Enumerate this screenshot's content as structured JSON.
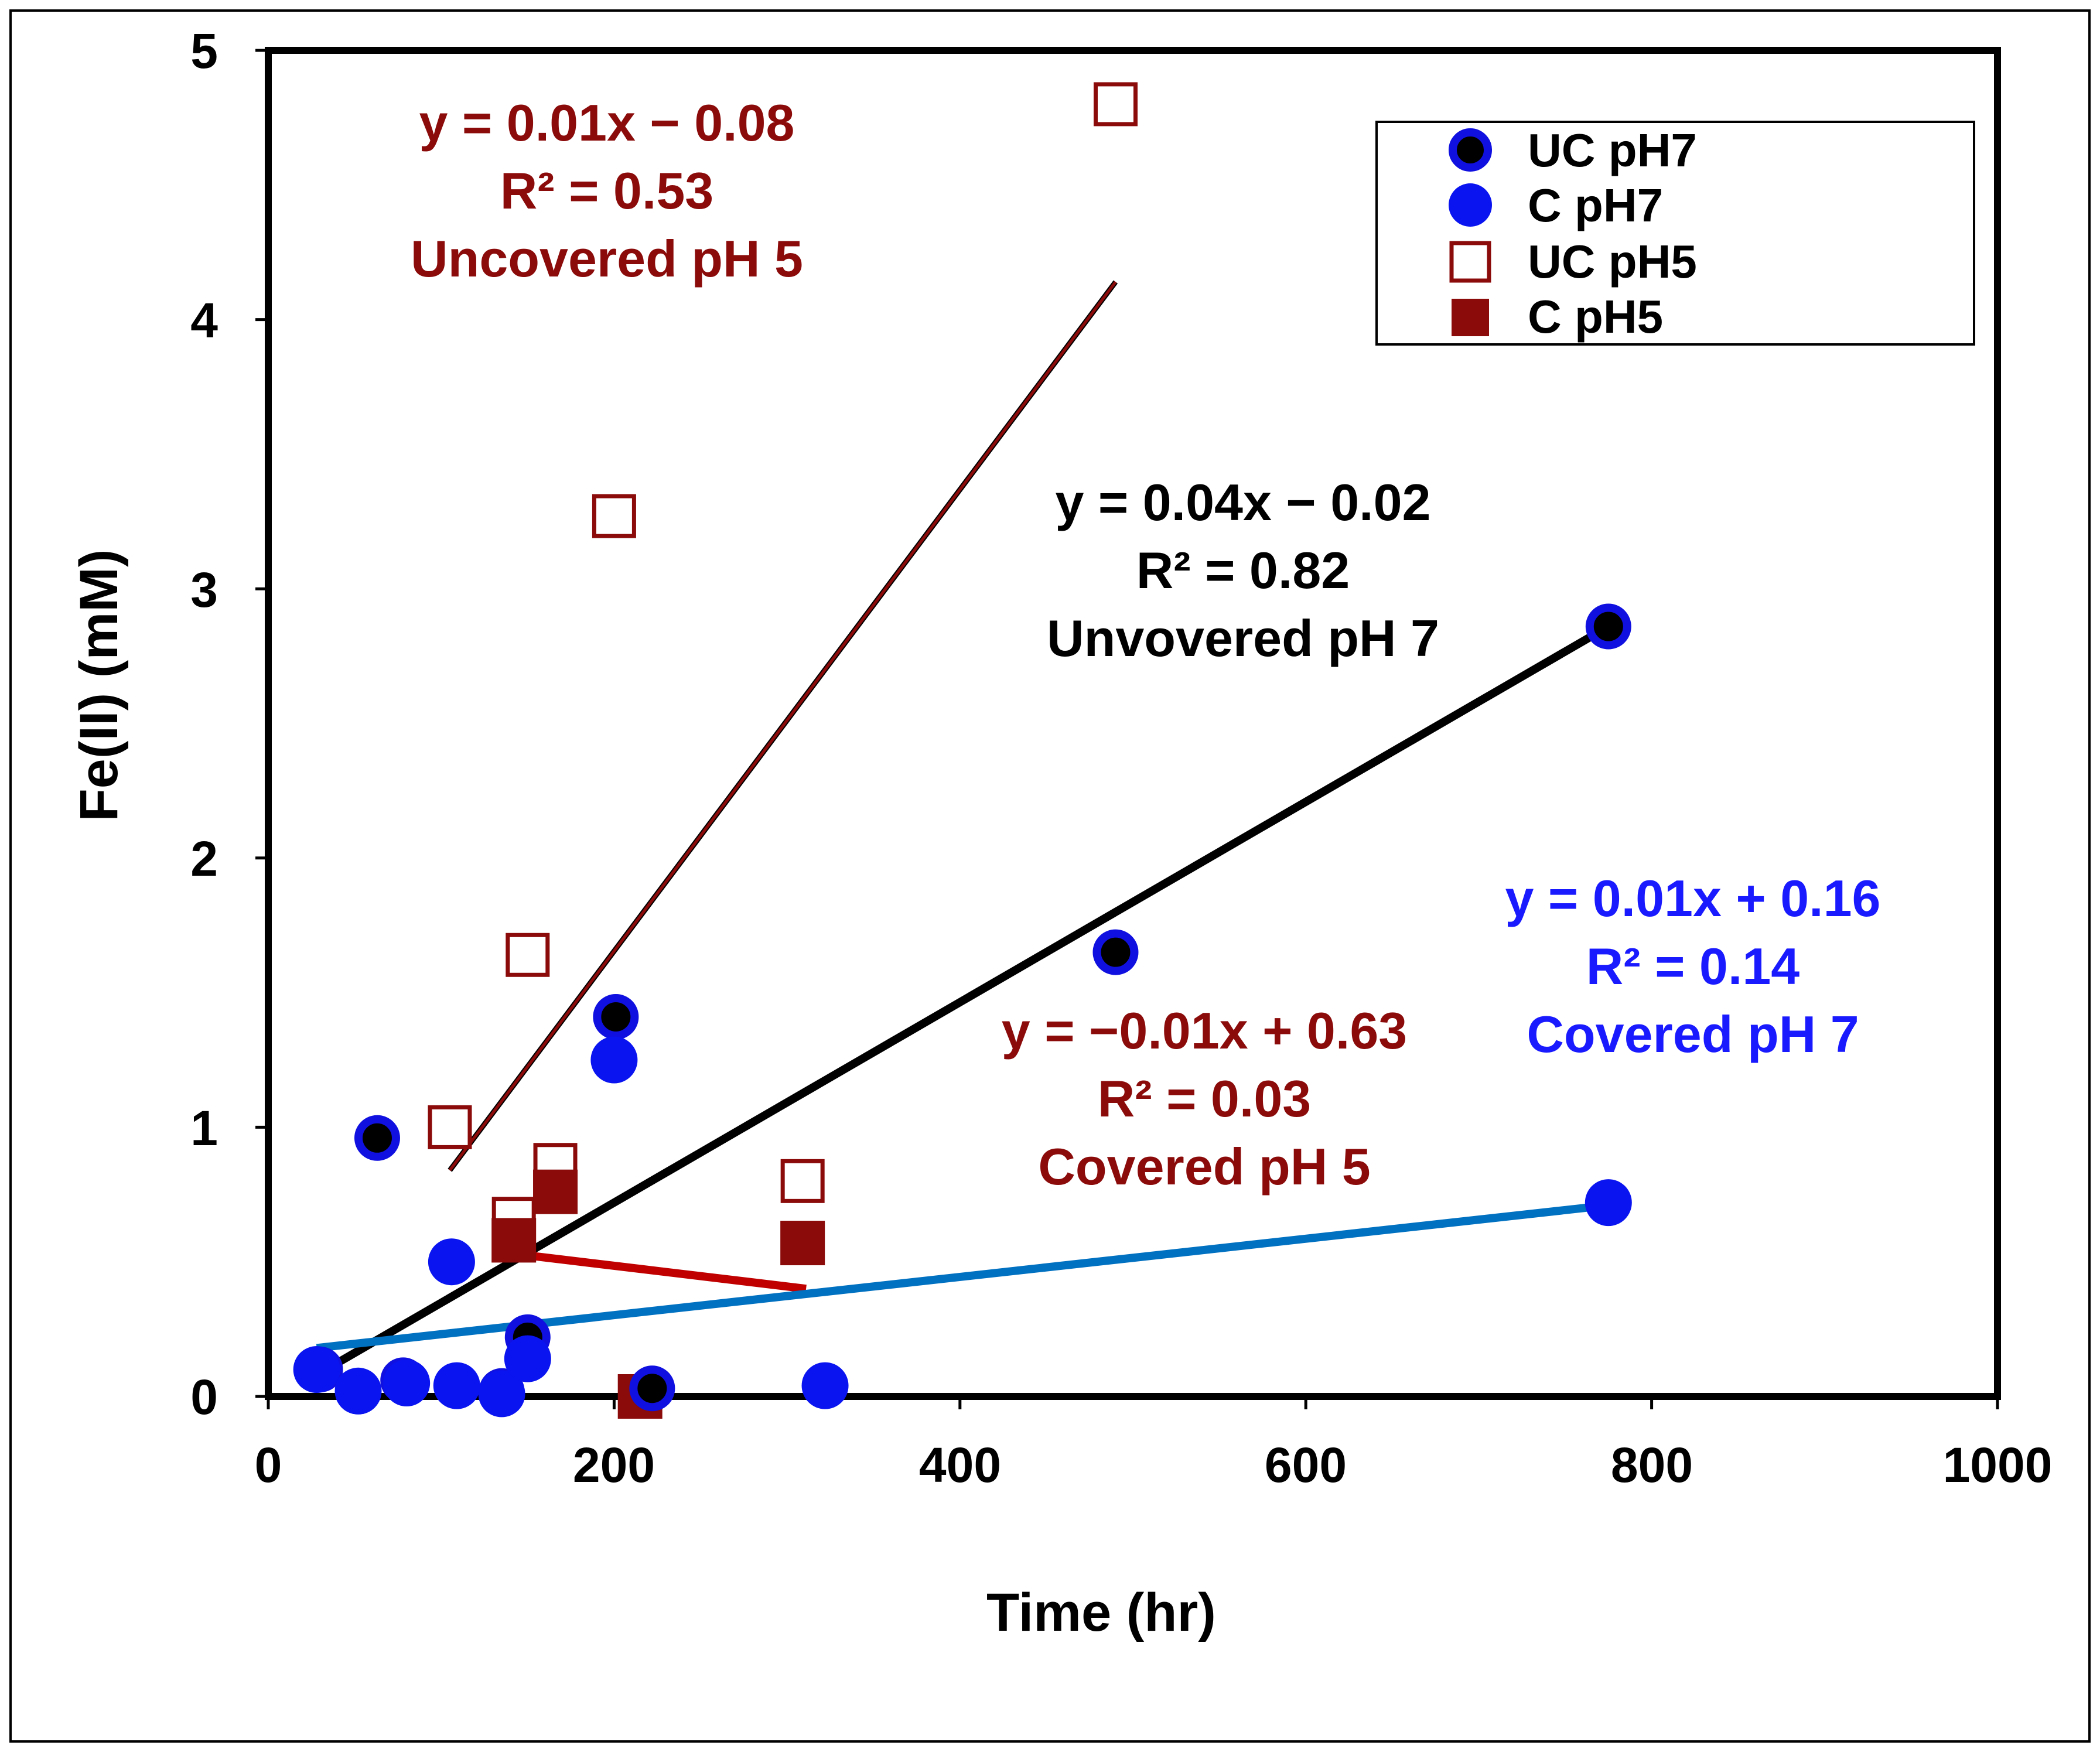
{
  "chart_data": {
    "type": "scatter",
    "title": "",
    "xlabel": "Time (hr)",
    "ylabel": "Fe(II) (mM)",
    "xlim": [
      0,
      1000
    ],
    "ylim": [
      0,
      5
    ],
    "xticks": [
      "0",
      "200",
      "400",
      "600",
      "800",
      "1000"
    ],
    "yticks": [
      "0",
      "1",
      "2",
      "3",
      "4",
      "5"
    ],
    "grid": false,
    "legend_position": "top-right",
    "series": [
      {
        "name": "UC pH7",
        "marker": "circle-filled-black-blue-edge",
        "color": "#000000",
        "edge_color": "#1010e0",
        "points": [
          [
            30,
            0.1
          ],
          [
            63,
            0.96
          ],
          [
            78,
            0.06
          ],
          [
            135,
            0.02
          ],
          [
            150,
            0.22
          ],
          [
            201,
            1.41
          ],
          [
            222,
            0.03
          ],
          [
            490,
            1.65
          ],
          [
            775,
            2.86
          ]
        ]
      },
      {
        "name": "C pH7",
        "marker": "circle-filled-blue",
        "color": "#0a14f0",
        "points": [
          [
            28,
            0.1
          ],
          [
            52,
            0.02
          ],
          [
            80,
            0.05
          ],
          [
            109,
            0.04
          ],
          [
            106,
            0.5
          ],
          [
            135,
            0.01
          ],
          [
            150,
            0.14
          ],
          [
            200,
            1.25
          ],
          [
            322,
            0.04
          ],
          [
            775,
            0.72
          ]
        ]
      },
      {
        "name": "UC pH5",
        "marker": "square-open",
        "color": "#8b0a0a",
        "points": [
          [
            105,
            1.0
          ],
          [
            142,
            0.66
          ],
          [
            150,
            1.64
          ],
          [
            166,
            0.86
          ],
          [
            200,
            3.27
          ],
          [
            309,
            0.8
          ],
          [
            490,
            4.8
          ]
        ]
      },
      {
        "name": "C pH5",
        "marker": "square-filled",
        "color": "#8b0a0a",
        "points": [
          [
            142,
            0.58
          ],
          [
            166,
            0.76
          ],
          [
            215,
            0.0
          ],
          [
            309,
            0.57
          ]
        ]
      }
    ],
    "trendlines": [
      {
        "series": "UC pH5",
        "color": "#8b0a0a",
        "x_range": [
          105,
          490
        ],
        "y_range": [
          0.84,
          4.14
        ]
      },
      {
        "series": "UC pH7",
        "color": "#000000",
        "x_range": [
          28,
          775
        ],
        "y_range": [
          0.08,
          2.86
        ]
      },
      {
        "series": "C pH5",
        "color": "#c00000",
        "x_range": [
          142,
          311
        ],
        "y_range": [
          0.53,
          0.4
        ]
      },
      {
        "series": "C pH7",
        "color": "#0070c0",
        "x_range": [
          28,
          775
        ],
        "y_range": [
          0.18,
          0.71
        ]
      }
    ],
    "annotations": [
      {
        "id": "uc5",
        "color": "#8b0a0a",
        "lines": [
          "y = 0.01x − 0.08",
          "R² = 0.53",
          "Uncovered pH 5"
        ]
      },
      {
        "id": "uc7",
        "color": "#000000",
        "lines": [
          "y = 0.04x − 0.02",
          "R² = 0.82",
          "Unvovered pH 7"
        ]
      },
      {
        "id": "c5",
        "color": "#8b0a0a",
        "lines": [
          "y = −0.01x + 0.63",
          "R² = 0.03",
          "Covered pH 5"
        ]
      },
      {
        "id": "c7",
        "color": "#1a1aff",
        "lines": [
          "y = 0.01x + 0.16",
          "R² = 0.14",
          "Covered pH 7"
        ]
      }
    ]
  }
}
